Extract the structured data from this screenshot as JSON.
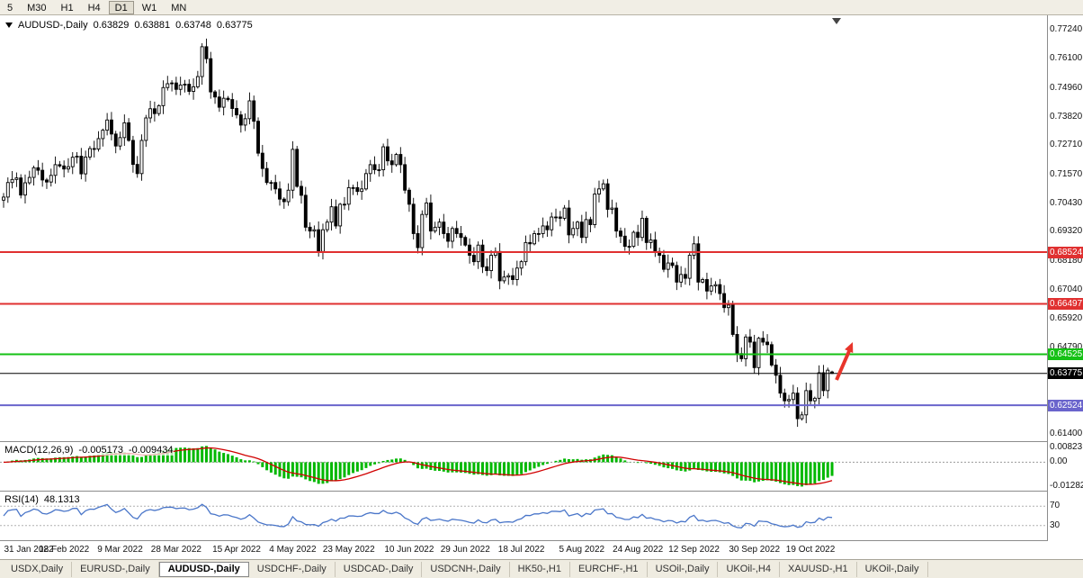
{
  "toolbar": {
    "timeframes": [
      "5",
      "M30",
      "H1",
      "H4",
      "D1",
      "W1",
      "MN"
    ],
    "active": "D1"
  },
  "chart": {
    "symbol_label": "AUDUSD-,Daily",
    "quote": {
      "open": "0.63829",
      "high": "0.63881",
      "low": "0.63748",
      "close": "0.63775"
    },
    "price_lines": [
      {
        "value": 0.68524,
        "label": "0.68524",
        "color": "#e03030"
      },
      {
        "value": 0.66497,
        "label": "0.66497",
        "color": "#e03030"
      },
      {
        "value": 0.64525,
        "label": "0.64525",
        "color": "#15c115"
      },
      {
        "value": 0.63775,
        "label": "0.63775",
        "color": "#000000"
      },
      {
        "value": 0.62524,
        "label": "0.62524",
        "color": "#6a64cc"
      }
    ]
  },
  "colors": {
    "candle": "#000000",
    "bull_body": "#ffffff",
    "background": "#ffffff",
    "arrow": "#e8352b"
  },
  "macd": {
    "title": "MACD(12,26,9)",
    "value1": "-0.005173",
    "value2": "-0.009434",
    "histogram_color": "#00b800",
    "signal_color": "#d10000",
    "ylim": [
      -0.0155,
      0.011
    ],
    "axis": [
      {
        "value": 0.00823,
        "label": "0.00823"
      },
      {
        "value": 0,
        "label": "0.00"
      },
      {
        "value": -0.01282,
        "label": "-0.01282"
      }
    ]
  },
  "rsi": {
    "title": "RSI(14)",
    "value": "48.1313",
    "line_color": "#4a76c9",
    "ylim": [
      0,
      100
    ],
    "levels": [
      {
        "value": 70,
        "label": "70"
      },
      {
        "value": 30,
        "label": "30"
      }
    ]
  },
  "tabs": {
    "items": [
      "USDX,Daily",
      "EURUSD-,Daily",
      "AUDUSD-,Daily",
      "USDCHF-,Daily",
      "USDCAD-,Daily",
      "USDCNH-,Daily",
      "HK50-,H1",
      "EURCHF-,H1",
      "USOil-,Daily",
      "UKOil-,H4",
      "XAUUSD-,H1",
      "UKOil-,Daily"
    ],
    "active": "AUDUSD-,Daily"
  },
  "chart_data": {
    "type": "candlestick",
    "symbol": "AUDUSD-",
    "timeframe": "Daily",
    "ylim": [
      0.6112,
      0.778
    ],
    "y_ticks": [
      "0.77240",
      "0.76100",
      "0.74960",
      "0.73820",
      "0.72710",
      "0.71570",
      "0.70430",
      "0.69320",
      "0.68180",
      "0.67040",
      "0.65920",
      "0.64790",
      "0.63650",
      "0.62540",
      "0.61400"
    ],
    "x_labels": [
      {
        "index": 0,
        "label": "31 Jan 2022"
      },
      {
        "index": 14,
        "label": "18 Feb 2022"
      },
      {
        "index": 27,
        "label": "9 Mar 2022"
      },
      {
        "index": 40,
        "label": "28 Mar 2022"
      },
      {
        "index": 54,
        "label": "15 Apr 2022"
      },
      {
        "index": 67,
        "label": "4 May 2022"
      },
      {
        "index": 80,
        "label": "23 May 2022"
      },
      {
        "index": 94,
        "label": "10 Jun 2022"
      },
      {
        "index": 107,
        "label": "29 Jun 2022"
      },
      {
        "index": 120,
        "label": "18 Jul 2022"
      },
      {
        "index": 134,
        "label": "5 Aug 2022"
      },
      {
        "index": 147,
        "label": "24 Aug 2022"
      },
      {
        "index": 160,
        "label": "12 Sep 2022"
      },
      {
        "index": 174,
        "label": "30 Sep 2022"
      },
      {
        "index": 187,
        "label": "19 Oct 2022"
      }
    ],
    "closes": [
      0.7068,
      0.7125,
      0.7137,
      0.7143,
      0.7076,
      0.7124,
      0.7145,
      0.7183,
      0.7173,
      0.7135,
      0.7127,
      0.7153,
      0.7195,
      0.719,
      0.7178,
      0.7187,
      0.7224,
      0.7228,
      0.7159,
      0.7225,
      0.7258,
      0.7256,
      0.7297,
      0.733,
      0.737,
      0.7315,
      0.7268,
      0.7301,
      0.7359,
      0.729,
      0.7196,
      0.716,
      0.729,
      0.7378,
      0.7414,
      0.7395,
      0.7426,
      0.7497,
      0.7512,
      0.7515,
      0.749,
      0.7507,
      0.751,
      0.7482,
      0.75,
      0.754,
      0.7657,
      0.761,
      0.748,
      0.746,
      0.742,
      0.7455,
      0.745,
      0.7415,
      0.739,
      0.735,
      0.7375,
      0.7445,
      0.7365,
      0.724,
      0.718,
      0.7125,
      0.7125,
      0.71,
      0.706,
      0.705,
      0.7095,
      0.7255,
      0.711,
      0.7075,
      0.695,
      0.6935,
      0.694,
      0.6855,
      0.694,
      0.697,
      0.703,
      0.6955,
      0.704,
      0.704,
      0.7105,
      0.7105,
      0.709,
      0.71,
      0.716,
      0.7195,
      0.7175,
      0.7175,
      0.7265,
      0.721,
      0.7195,
      0.7235,
      0.7195,
      0.7095,
      0.704,
      0.6925,
      0.687,
      0.7,
      0.7045,
      0.6935,
      0.695,
      0.697,
      0.6925,
      0.6895,
      0.6945,
      0.6925,
      0.691,
      0.688,
      0.684,
      0.6815,
      0.688,
      0.6795,
      0.678,
      0.684,
      0.6855,
      0.674,
      0.6755,
      0.676,
      0.6745,
      0.679,
      0.6815,
      0.689,
      0.6885,
      0.6925,
      0.6925,
      0.6955,
      0.694,
      0.699,
      0.699,
      0.6985,
      0.7025,
      0.692,
      0.6945,
      0.697,
      0.691,
      0.698,
      0.696,
      0.708,
      0.71,
      0.712,
      0.702,
      0.7025,
      0.6935,
      0.6915,
      0.6875,
      0.6875,
      0.693,
      0.691,
      0.6985,
      0.689,
      0.69,
      0.6855,
      0.684,
      0.6785,
      0.681,
      0.68,
      0.6735,
      0.6765,
      0.675,
      0.684,
      0.6885,
      0.6735,
      0.6745,
      0.67,
      0.672,
      0.6725,
      0.669,
      0.6635,
      0.6645,
      0.653,
      0.6455,
      0.6435,
      0.652,
      0.65,
      0.64,
      0.6515,
      0.65,
      0.649,
      0.641,
      0.637,
      0.63,
      0.627,
      0.6275,
      0.63,
      0.62,
      0.6215,
      0.631,
      0.627,
      0.628,
      0.638,
      0.631,
      0.639,
      0.63775
    ]
  }
}
